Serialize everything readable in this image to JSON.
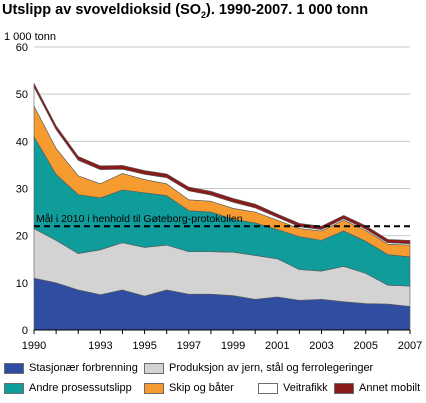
{
  "chart_data": {
    "type": "area",
    "stacked": true,
    "title_prefix": "Utslipp av svoveldioksid (SO",
    "title_sub": "2",
    "title_suffix": "). 1990-2007. 1 000 tonn",
    "ylabel": "1 000 tonn",
    "xlabel": "",
    "ylim": [
      0,
      60
    ],
    "yticks": [
      0,
      10,
      20,
      30,
      40,
      50,
      60
    ],
    "xlim": [
      1990,
      2007
    ],
    "xticks": [
      1990,
      1993,
      1995,
      1997,
      1999,
      2001,
      2003,
      2005,
      2007
    ],
    "grid": true,
    "legend": "bottom",
    "x": [
      1990,
      1991,
      1992,
      1993,
      1994,
      1995,
      1996,
      1997,
      1998,
      1999,
      2000,
      2001,
      2002,
      2003,
      2004,
      2005,
      2006,
      2007
    ],
    "series": [
      {
        "name": "Stasjonær forbrenning",
        "color": "#2f4ea1",
        "values": [
          11.0,
          10.0,
          8.5,
          7.5,
          8.5,
          7.2,
          8.5,
          7.6,
          7.6,
          7.3,
          6.5,
          7.0,
          6.3,
          6.5,
          6.0,
          5.6,
          5.5,
          5.0
        ]
      },
      {
        "name": "Produksjon av jern, stål og ferrolegeringer",
        "color": "#d3d3d3",
        "values": [
          10.5,
          9.0,
          7.7,
          9.5,
          10.0,
          10.3,
          9.5,
          9.0,
          9.0,
          9.2,
          9.3,
          8.1,
          6.5,
          6.0,
          7.5,
          6.4,
          4.0,
          4.3
        ]
      },
      {
        "name": "Andre prosessutslipp",
        "color": "#119c9c",
        "values": [
          19.5,
          14.0,
          12.5,
          11.0,
          11.2,
          11.6,
          10.5,
          8.7,
          8.4,
          7.0,
          6.9,
          6.2,
          7.0,
          6.5,
          7.5,
          6.8,
          6.5,
          6.2
        ]
      },
      {
        "name": "Skip og båter",
        "color": "#f59b2f",
        "values": [
          6.5,
          5.5,
          4.0,
          3.0,
          3.5,
          2.8,
          2.5,
          2.3,
          2.3,
          2.3,
          2.3,
          2.0,
          1.7,
          2.0,
          2.3,
          2.3,
          2.2,
          2.5
        ]
      },
      {
        "name": "Veitrafikk",
        "color": "#ffffff",
        "values": [
          4.0,
          4.0,
          3.3,
          3.0,
          0.9,
          1.1,
          1.3,
          1.9,
          1.3,
          1.3,
          0.9,
          0.6,
          0.4,
          0.3,
          0.3,
          0.3,
          0.3,
          0.3
        ]
      },
      {
        "name": "Annet mobilt",
        "color": "#8b1a1a",
        "values": [
          0.8,
          0.8,
          0.8,
          0.8,
          0.8,
          0.8,
          0.8,
          0.8,
          0.8,
          0.8,
          0.8,
          0.7,
          0.7,
          0.7,
          0.7,
          0.7,
          0.7,
          0.7
        ]
      }
    ],
    "target_line": {
      "value": 22,
      "label": "Mål i 2010 i henhold til Gøteborg-protokollen"
    }
  }
}
